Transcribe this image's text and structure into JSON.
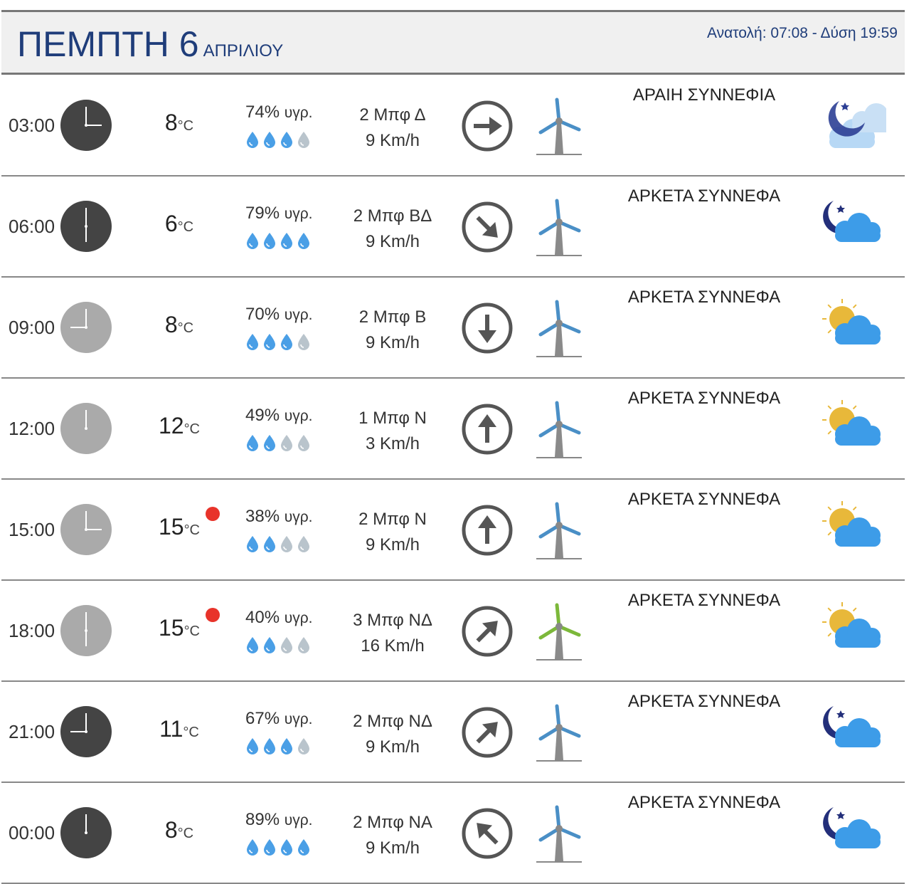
{
  "header": {
    "day": "ΠΕΜΠΤΗ 6",
    "month": "ΑΠΡΙΛΙΟΥ",
    "sun_times": "Ανατολή: 07:08  - Δύση 19:59"
  },
  "colors": {
    "accent": "#1f3d7a",
    "drop_filled": "#4a9fe6",
    "drop_empty": "#b9c4cc",
    "hot_dot": "#e8332a",
    "clock_night": "#444444",
    "clock_day": "#aaaaaa"
  },
  "rows": [
    {
      "time": "03:00",
      "clock": "night",
      "temp": "8",
      "unit": "°C",
      "hot": false,
      "humidity": "74%",
      "hum_unit": "υγρ.",
      "drops_filled": 3,
      "beaufort": "2 Μπφ Δ",
      "speed": "9 Km/h",
      "arrow_rotation_deg": 90,
      "turbine": "blue",
      "desc": "ΑΡΑΙΗ ΣΥΝΝΕΦΙΑ",
      "icon": "night-few-clouds-icon"
    },
    {
      "time": "06:00",
      "clock": "night",
      "temp": "6",
      "unit": "°C",
      "hot": false,
      "humidity": "79%",
      "hum_unit": "υγρ.",
      "drops_filled": 4,
      "beaufort": "2 Μπφ ΒΔ",
      "speed": "9 Km/h",
      "arrow_rotation_deg": 135,
      "turbine": "blue",
      "desc": "ΑΡΚΕΤΑ ΣΥΝΝΕΦΑ",
      "icon": "night-cloudy-icon"
    },
    {
      "time": "09:00",
      "clock": "day",
      "temp": "8",
      "unit": "°C",
      "hot": false,
      "humidity": "70%",
      "hum_unit": "υγρ.",
      "drops_filled": 3,
      "beaufort": "2 Μπφ Β",
      "speed": "9 Km/h",
      "arrow_rotation_deg": 180,
      "turbine": "blue",
      "desc": "ΑΡΚΕΤΑ ΣΥΝΝΕΦΑ",
      "icon": "day-cloudy-icon"
    },
    {
      "time": "12:00",
      "clock": "day",
      "temp": "12",
      "unit": "°C",
      "hot": false,
      "humidity": "49%",
      "hum_unit": "υγρ.",
      "drops_filled": 2,
      "beaufort": "1 Μπφ Ν",
      "speed": "3 Km/h",
      "arrow_rotation_deg": 0,
      "turbine": "blue",
      "desc": "ΑΡΚΕΤΑ ΣΥΝΝΕΦΑ",
      "icon": "day-cloudy-icon"
    },
    {
      "time": "15:00",
      "clock": "day",
      "temp": "15",
      "unit": "°C",
      "hot": true,
      "humidity": "38%",
      "hum_unit": "υγρ.",
      "drops_filled": 2,
      "beaufort": "2 Μπφ Ν",
      "speed": "9 Km/h",
      "arrow_rotation_deg": 0,
      "turbine": "blue",
      "desc": "ΑΡΚΕΤΑ ΣΥΝΝΕΦΑ",
      "icon": "day-cloudy-icon"
    },
    {
      "time": "18:00",
      "clock": "day",
      "temp": "15",
      "unit": "°C",
      "hot": true,
      "humidity": "40%",
      "hum_unit": "υγρ.",
      "drops_filled": 2,
      "beaufort": "3 Μπφ ΝΔ",
      "speed": "16 Km/h",
      "arrow_rotation_deg": 45,
      "turbine": "green",
      "desc": "ΑΡΚΕΤΑ ΣΥΝΝΕΦΑ",
      "icon": "day-cloudy-icon"
    },
    {
      "time": "21:00",
      "clock": "night",
      "temp": "11",
      "unit": "°C",
      "hot": false,
      "humidity": "67%",
      "hum_unit": "υγρ.",
      "drops_filled": 3,
      "beaufort": "2 Μπφ ΝΔ",
      "speed": "9 Km/h",
      "arrow_rotation_deg": 45,
      "turbine": "blue",
      "desc": "ΑΡΚΕΤΑ ΣΥΝΝΕΦΑ",
      "icon": "night-cloudy-icon"
    },
    {
      "time": "00:00",
      "clock": "night",
      "temp": "8",
      "unit": "°C",
      "hot": false,
      "humidity": "89%",
      "hum_unit": "υγρ.",
      "drops_filled": 4,
      "beaufort": "2 Μπφ ΝΑ",
      "speed": "9 Km/h",
      "arrow_rotation_deg": 315,
      "turbine": "blue",
      "desc": "ΑΡΚΕΤΑ ΣΥΝΝΕΦΑ",
      "icon": "night-cloudy-icon"
    }
  ]
}
